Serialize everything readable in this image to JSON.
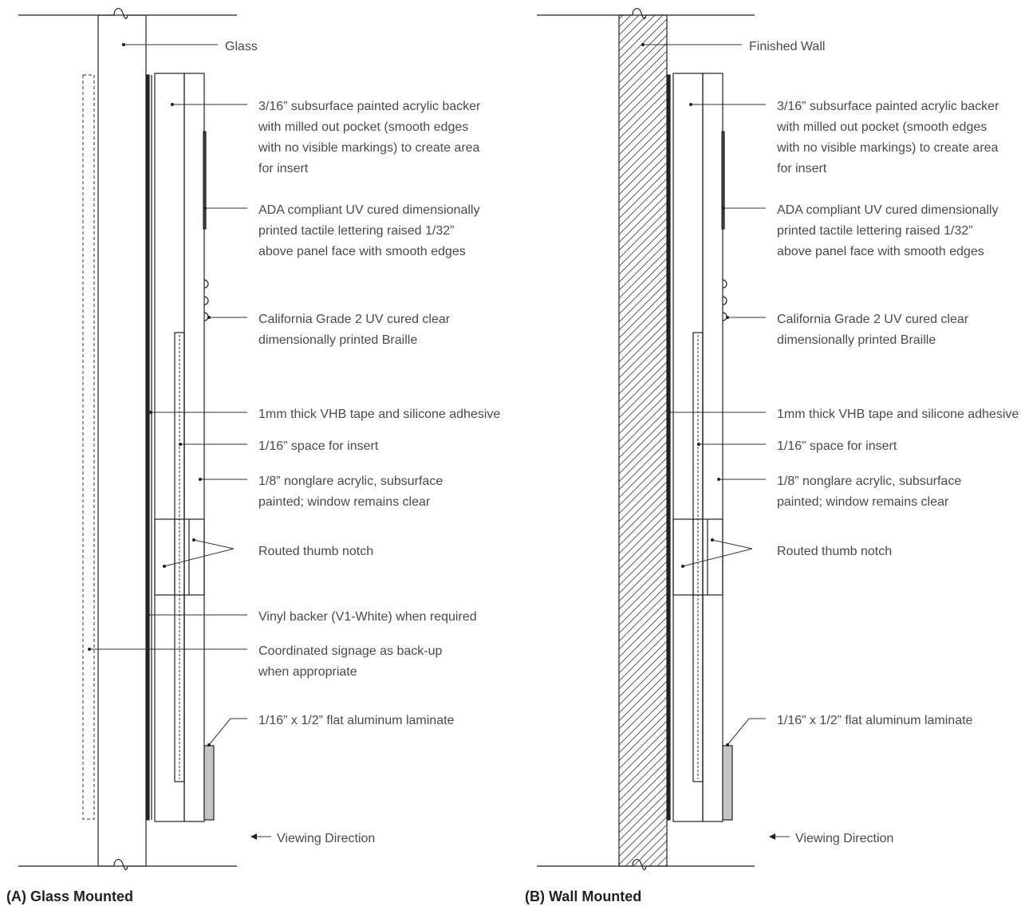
{
  "colors": {
    "line": "#222222",
    "leader": "#333333",
    "text": "#4a4a4a",
    "dashed": "#555555",
    "metal_fill": "#c4c4c4",
    "lettering_fill": "#444444",
    "hatch": "#444444"
  },
  "left_panel": {
    "caption": "(A) Glass Mounted",
    "substrate_label": "Glass",
    "labels": {
      "backer": [
        "3/16” subsurface painted acrylic backer",
        "with milled out pocket (smooth edges",
        "with no visible markings) to create area",
        "for insert"
      ],
      "lettering": [
        "ADA compliant UV cured dimensionally",
        "printed tactile lettering raised 1/32”",
        "above panel face with smooth edges"
      ],
      "braille": [
        "California Grade 2 UV cured clear",
        "dimensionally printed Braille"
      ],
      "tape": [
        "1mm thick VHB tape and silicone adhesive"
      ],
      "insert": [
        "1/16” space for insert"
      ],
      "acrylic": [
        "1/8” nonglare acrylic, subsurface",
        "painted; window remains clear"
      ],
      "notch": [
        "Routed thumb notch"
      ],
      "vinyl": [
        "Vinyl backer (V1-White) when required"
      ],
      "backup": [
        "Coordinated signage as back-up",
        "when appropriate"
      ],
      "laminate": [
        "1/16” x 1/2” flat aluminum laminate"
      ],
      "viewing": [
        "Viewing Direction"
      ]
    }
  },
  "right_panel": {
    "caption": "(B) Wall Mounted",
    "substrate_label": "Finished Wall",
    "labels": {
      "backer": [
        "3/16” subsurface painted acrylic backer",
        "with milled out pocket (smooth edges",
        "with no visible markings) to create area",
        "for insert"
      ],
      "lettering": [
        "ADA compliant UV cured dimensionally",
        "printed tactile lettering raised 1/32”",
        "above panel face with smooth edges"
      ],
      "braille": [
        "California Grade 2 UV cured clear",
        "dimensionally printed Braille"
      ],
      "tape": [
        "1mm thick VHB tape and silicone adhesive"
      ],
      "insert": [
        "1/16” space for insert"
      ],
      "acrylic": [
        "1/8” nonglare acrylic, subsurface",
        "painted; window remains clear"
      ],
      "notch": [
        "Routed thumb notch"
      ],
      "laminate": [
        "1/16” x 1/2” flat aluminum laminate"
      ],
      "viewing": [
        "Viewing Direction"
      ]
    }
  }
}
